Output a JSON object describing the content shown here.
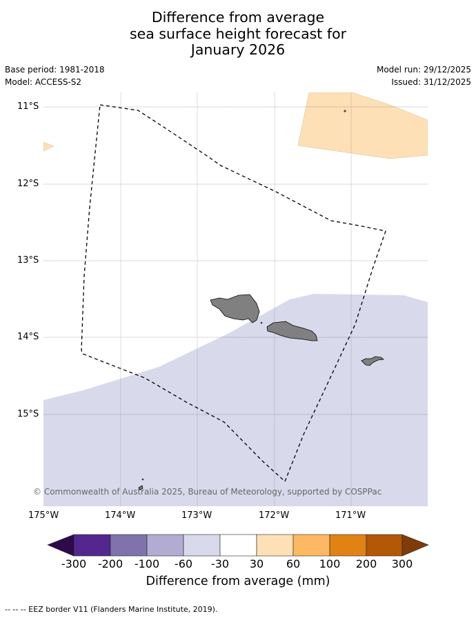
{
  "title": {
    "line1": "Difference from average",
    "line2": "sea surface height forecast for",
    "line3": "January 2026"
  },
  "meta": {
    "base_period": "Base period: 1981-2018",
    "model": "Model: ACCESS-S2",
    "model_run": "Model run: 29/12/2025",
    "issued": "Issued: 31/12/2025"
  },
  "axes": {
    "lat_labels": [
      "11°S",
      "12°S",
      "13°S",
      "14°S",
      "15°S"
    ],
    "lon_labels": [
      "175°W",
      "174°W",
      "173°W",
      "172°W",
      "171°W"
    ]
  },
  "copyright": "© Commonwealth of Australia 2025, Bureau of Meteorology, supported by COSPPac",
  "colorbar": {
    "ticks": [
      "-300",
      "-200",
      "-100",
      "-60",
      "-30",
      "30",
      "60",
      "100",
      "200",
      "300"
    ],
    "label": "Difference from average (mm)",
    "colors": {
      "under": "#2d0a4a",
      "c1": "#54278f",
      "c2": "#8073ac",
      "c3": "#b2abd2",
      "c4": "#d8daeb",
      "c5": "#ffffff",
      "c6": "#fee0b6",
      "c7": "#fdb863",
      "c8": "#e08214",
      "c9": "#b35806",
      "over": "#7f3b08"
    }
  },
  "legend_text": "--  --  -- EEZ border V11 (Flanders Marine Institute, 2019).",
  "colors": {
    "land": "#808080",
    "negative_anomaly": "#d8daeb",
    "positive_anomaly": "#fee0b6",
    "grid": "#000000"
  }
}
